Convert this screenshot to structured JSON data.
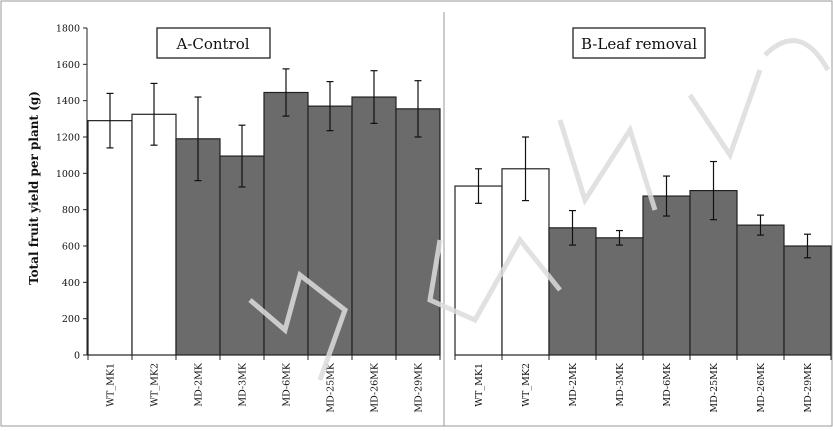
{
  "chart_data": [
    {
      "type": "bar",
      "title": "A-Control",
      "ylabel": "Total fruit yield per plant (g)",
      "ylim": [
        0,
        1800
      ],
      "yticks": [
        0,
        200,
        400,
        600,
        800,
        1000,
        1200,
        1400,
        1600,
        1800
      ],
      "categories": [
        "WT_MK1",
        "WT_MK2",
        "MD-2MK",
        "MD-3MK",
        "MD-6MK",
        "MD-25MK",
        "MD-26MK",
        "MD-29MK"
      ],
      "values": [
        1290,
        1325,
        1190,
        1095,
        1445,
        1370,
        1420,
        1355
      ],
      "errors": [
        150,
        170,
        230,
        170,
        130,
        135,
        145,
        155
      ],
      "bar_colors": [
        "#ffffff",
        "#ffffff",
        "#6b6b6b",
        "#6b6b6b",
        "#6b6b6b",
        "#6b6b6b",
        "#6b6b6b",
        "#6b6b6b"
      ]
    },
    {
      "type": "bar",
      "title": "B-Leaf removal",
      "ylim": [
        0,
        1800
      ],
      "categories": [
        "WT_MK1",
        "WT_MK2",
        "MD-2MK",
        "MD-3MK",
        "MD-6MK",
        "MD-25MK",
        "MD-26MK",
        "MD-29MK"
      ],
      "values": [
        930,
        1025,
        700,
        645,
        875,
        905,
        715,
        600
      ],
      "errors": [
        95,
        175,
        95,
        40,
        110,
        160,
        55,
        65
      ],
      "bar_colors": [
        "#ffffff",
        "#ffffff",
        "#6b6b6b",
        "#6b6b6b",
        "#6b6b6b",
        "#6b6b6b",
        "#6b6b6b",
        "#6b6b6b"
      ]
    }
  ],
  "colors": {
    "frame": "#9a9a9a",
    "bar_edge": "#222222",
    "watermark": "#d8d8d8"
  }
}
